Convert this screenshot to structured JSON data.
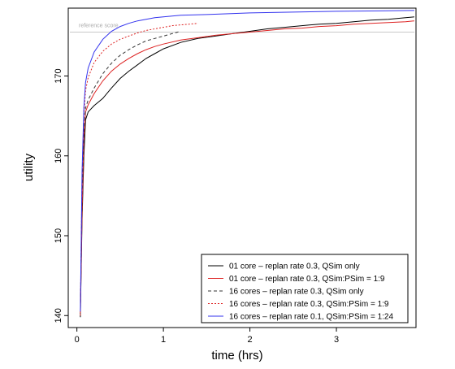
{
  "chart_data": {
    "type": "line",
    "title": "",
    "xlabel": "time (hrs)",
    "ylabel": "utility",
    "xlim": [
      -0.1,
      3.92
    ],
    "ylim": [
      138.5,
      178.5
    ],
    "x_ticks": [
      0,
      1,
      2,
      3
    ],
    "y_ticks": [
      140,
      150,
      160,
      170
    ],
    "grid": false,
    "legend_position": "bottom-right",
    "reference_line": {
      "label": "reference score",
      "y": 175.5,
      "color": "#c8c8c8"
    },
    "series": [
      {
        "name": "01 core  – replan rate 0.3, QSim only",
        "color": "#000000",
        "dash": "solid",
        "points": [
          [
            0.04,
            139.8
          ],
          [
            0.06,
            152
          ],
          [
            0.08,
            160
          ],
          [
            0.1,
            164.5
          ],
          [
            0.13,
            165.5
          ],
          [
            0.2,
            166.3
          ],
          [
            0.3,
            167.2
          ],
          [
            0.4,
            168.5
          ],
          [
            0.5,
            169.7
          ],
          [
            0.6,
            170.6
          ],
          [
            0.7,
            171.4
          ],
          [
            0.8,
            172.2
          ],
          [
            0.9,
            172.8
          ],
          [
            1.0,
            173.4
          ],
          [
            1.2,
            174.2
          ],
          [
            1.4,
            174.7
          ],
          [
            1.6,
            175.0
          ],
          [
            1.8,
            175.3
          ],
          [
            2.0,
            175.6
          ],
          [
            2.2,
            175.9
          ],
          [
            2.4,
            176.1
          ],
          [
            2.6,
            176.3
          ],
          [
            2.8,
            176.5
          ],
          [
            3.0,
            176.6
          ],
          [
            3.2,
            176.8
          ],
          [
            3.4,
            177.0
          ],
          [
            3.6,
            177.1
          ],
          [
            3.8,
            177.3
          ],
          [
            3.9,
            177.4
          ]
        ]
      },
      {
        "name": "01 core  – replan rate 0.3, QSim:PSim = 1:9",
        "color": "#dd2222",
        "dash": "solid",
        "points": [
          [
            0.04,
            140.0
          ],
          [
            0.06,
            153
          ],
          [
            0.08,
            162
          ],
          [
            0.1,
            165.5
          ],
          [
            0.13,
            166.4
          ],
          [
            0.2,
            167.8
          ],
          [
            0.3,
            169.4
          ],
          [
            0.4,
            170.6
          ],
          [
            0.5,
            171.5
          ],
          [
            0.6,
            172.2
          ],
          [
            0.7,
            172.8
          ],
          [
            0.8,
            173.3
          ],
          [
            0.9,
            173.7
          ],
          [
            1.0,
            174.0
          ],
          [
            1.2,
            174.5
          ],
          [
            1.4,
            174.8
          ],
          [
            1.6,
            175.1
          ],
          [
            1.8,
            175.3
          ],
          [
            2.0,
            175.5
          ],
          [
            2.2,
            175.7
          ],
          [
            2.4,
            175.9
          ],
          [
            2.6,
            176.0
          ],
          [
            2.8,
            176.2
          ],
          [
            3.0,
            176.3
          ],
          [
            3.2,
            176.5
          ],
          [
            3.4,
            176.6
          ],
          [
            3.6,
            176.7
          ],
          [
            3.8,
            176.8
          ],
          [
            3.9,
            176.9
          ]
        ]
      },
      {
        "name": "16 cores – replan rate 0.3, QSim only",
        "color": "#333333",
        "dash": "dashed",
        "points": [
          [
            0.04,
            140.2
          ],
          [
            0.06,
            155
          ],
          [
            0.08,
            163
          ],
          [
            0.1,
            166.0
          ],
          [
            0.13,
            167.0
          ],
          [
            0.2,
            168.5
          ],
          [
            0.3,
            170.3
          ],
          [
            0.4,
            171.6
          ],
          [
            0.5,
            172.6
          ],
          [
            0.6,
            173.3
          ],
          [
            0.7,
            173.9
          ],
          [
            0.8,
            174.4
          ],
          [
            0.9,
            174.7
          ],
          [
            1.0,
            175.0
          ],
          [
            1.1,
            175.3
          ],
          [
            1.2,
            175.6
          ]
        ]
      },
      {
        "name": "16 cores – replan rate 0.3, QSim:PSim = 1:9",
        "color": "#dd2222",
        "dash": "dotted",
        "points": [
          [
            0.04,
            140.3
          ],
          [
            0.06,
            157
          ],
          [
            0.08,
            165
          ],
          [
            0.1,
            168.2
          ],
          [
            0.13,
            169.8
          ],
          [
            0.2,
            171.7
          ],
          [
            0.3,
            173.1
          ],
          [
            0.4,
            174.0
          ],
          [
            0.5,
            174.6
          ],
          [
            0.6,
            175.0
          ],
          [
            0.7,
            175.4
          ],
          [
            0.8,
            175.7
          ],
          [
            0.9,
            175.9
          ],
          [
            1.0,
            176.1
          ],
          [
            1.1,
            176.3
          ],
          [
            1.2,
            176.4
          ],
          [
            1.3,
            176.5
          ],
          [
            1.4,
            176.6
          ]
        ]
      },
      {
        "name": "16 cores – replan rate 0.1, QSim:PSim = 1:24",
        "color": "#3333ee",
        "dash": "solid",
        "points": [
          [
            0.04,
            140.5
          ],
          [
            0.06,
            158
          ],
          [
            0.08,
            166
          ],
          [
            0.1,
            169.2
          ],
          [
            0.13,
            171.0
          ],
          [
            0.2,
            173.0
          ],
          [
            0.3,
            174.6
          ],
          [
            0.4,
            175.6
          ],
          [
            0.5,
            176.2
          ],
          [
            0.6,
            176.6
          ],
          [
            0.7,
            176.9
          ],
          [
            0.8,
            177.1
          ],
          [
            0.9,
            177.3
          ],
          [
            1.0,
            177.4
          ],
          [
            1.2,
            177.6
          ],
          [
            1.5,
            177.7
          ],
          [
            2.0,
            177.9
          ],
          [
            2.5,
            178.0
          ],
          [
            3.0,
            178.1
          ],
          [
            3.5,
            178.15
          ],
          [
            3.9,
            178.2
          ]
        ]
      }
    ]
  }
}
